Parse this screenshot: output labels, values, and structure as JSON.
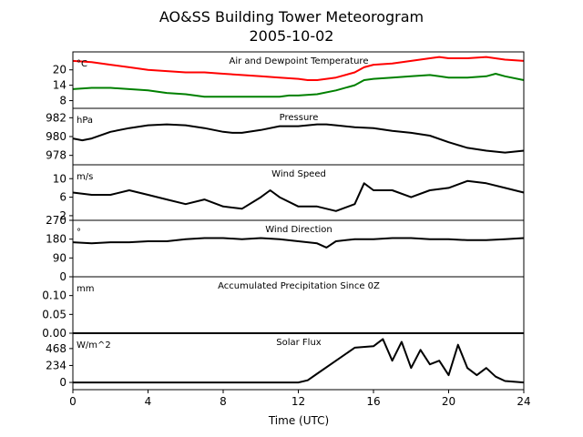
{
  "title": "AO&SS Building Tower Meteorogram",
  "subtitle": "2005-10-02",
  "chart_data": {
    "type": "line",
    "xlabel": "Time (UTC)",
    "xlim": [
      0,
      24
    ],
    "xticks": [
      0,
      4,
      8,
      12,
      16,
      20,
      24
    ],
    "panels": [
      {
        "title": "Air and Dewpoint Temperature",
        "unit": "°C",
        "ylim": [
          5,
          27
        ],
        "yticks": [
          8,
          14,
          20
        ],
        "series": [
          {
            "color": "#ff0000",
            "x": [
              0,
              1,
              2,
              3,
              4,
              5,
              6,
              7,
              8,
              9,
              10,
              11,
              12,
              12.5,
              13,
              14,
              15,
              15.5,
              16,
              17,
              18,
              19,
              19.5,
              20,
              21,
              22,
              23,
              24
            ],
            "y": [
              23.5,
              23,
              22,
              21,
              20,
              19.5,
              19,
              19,
              18.5,
              18,
              17.5,
              17,
              16.5,
              16,
              16,
              17,
              19,
              21,
              22,
              22.5,
              23.5,
              24.5,
              25,
              24.5,
              24.5,
              25,
              24,
              23.5
            ]
          },
          {
            "color": "#008000",
            "x": [
              0,
              1,
              2,
              3,
              4,
              5,
              6,
              7,
              8,
              9,
              10,
              11,
              11.5,
              12,
              13,
              14,
              15,
              15.5,
              16,
              17,
              18,
              19,
              19.5,
              20,
              21,
              22,
              22.5,
              23,
              24
            ],
            "y": [
              12.5,
              13,
              13,
              12.5,
              12,
              11,
              10.5,
              9.5,
              9.5,
              9.5,
              9.5,
              9.5,
              10,
              10,
              10.5,
              12,
              14,
              16,
              16.5,
              17,
              17.5,
              18,
              17.5,
              17,
              17,
              17.5,
              18.5,
              17.5,
              16
            ]
          }
        ]
      },
      {
        "title": "Pressure",
        "unit": "hPa",
        "ylim": [
          977,
          983
        ],
        "yticks": [
          978,
          980,
          982
        ],
        "series": [
          {
            "color": "#000000",
            "x": [
              0,
              0.5,
              1,
              2,
              3,
              4,
              5,
              6,
              7,
              8,
              8.5,
              9,
              10,
              11,
              12,
              13,
              13.5,
              14,
              15,
              16,
              17,
              18,
              19,
              20,
              21,
              22,
              23,
              24
            ],
            "y": [
              979.8,
              979.6,
              979.8,
              980.5,
              980.9,
              981.2,
              981.3,
              981.2,
              980.9,
              980.5,
              980.4,
              980.4,
              980.7,
              981.1,
              981.1,
              981.3,
              981.3,
              981.2,
              981.0,
              980.9,
              980.6,
              980.4,
              980.1,
              979.4,
              978.8,
              978.5,
              978.3,
              978.5
            ]
          }
        ]
      },
      {
        "title": "Wind Speed",
        "unit": "m/s",
        "ylim": [
          1,
          13
        ],
        "yticks": [
          2,
          6,
          10
        ],
        "series": [
          {
            "color": "#000000",
            "x": [
              0,
              1,
              2,
              3,
              4,
              5,
              6,
              7,
              8,
              9,
              10,
              10.5,
              11,
              12,
              13,
              14,
              15,
              15.5,
              16,
              17,
              18,
              19,
              20,
              21,
              22,
              23,
              24
            ],
            "y": [
              7,
              6.5,
              6.5,
              7.5,
              6.5,
              5.5,
              4.5,
              5.5,
              4,
              3.5,
              6,
              7.5,
              6,
              4,
              4,
              3,
              4.5,
              9,
              7.5,
              7.5,
              6,
              7.5,
              8,
              9.5,
              9,
              8,
              7
            ]
          }
        ]
      },
      {
        "title": "Wind Direction",
        "unit": "°",
        "ylim": [
          0,
          270
        ],
        "yticks": [
          0,
          90,
          180,
          270
        ],
        "series": [
          {
            "color": "#000000",
            "x": [
              0,
              1,
              2,
              3,
              4,
              5,
              6,
              7,
              8,
              9,
              10,
              11,
              12,
              13,
              13.5,
              14,
              15,
              16,
              17,
              18,
              19,
              20,
              21,
              22,
              23,
              24
            ],
            "y": [
              165,
              160,
              165,
              165,
              170,
              170,
              180,
              185,
              185,
              180,
              185,
              180,
              170,
              160,
              140,
              170,
              180,
              180,
              185,
              185,
              180,
              180,
              175,
              175,
              180,
              185
            ]
          }
        ]
      },
      {
        "title": "Accumulated Precipitation Since 0Z",
        "unit": "mm",
        "ylim": [
          0,
          0.15
        ],
        "yticks": [
          0.0,
          0.05,
          0.1
        ],
        "yticklabels": [
          "0.00",
          "0.05",
          "0.10"
        ],
        "series": [
          {
            "color": "#000000",
            "x": [
              0,
              24
            ],
            "y": [
              0,
              0
            ]
          }
        ]
      },
      {
        "title": "Solar Flux",
        "unit": "W/m^2",
        "ylim": [
          -100,
          680
        ],
        "yticks": [
          0,
          234,
          468
        ],
        "series": [
          {
            "color": "#000000",
            "x": [
              0,
              12,
              12.5,
              13,
              14,
              15,
              16,
              16.5,
              17,
              17.5,
              18,
              18.5,
              19,
              19.5,
              20,
              20.5,
              21,
              21.5,
              22,
              22.5,
              23,
              24
            ],
            "y": [
              0,
              0,
              30,
              120,
              300,
              480,
              500,
              600,
              300,
              560,
              200,
              450,
              250,
              300,
              100,
              520,
              200,
              100,
              200,
              80,
              20,
              0
            ]
          }
        ]
      }
    ]
  }
}
